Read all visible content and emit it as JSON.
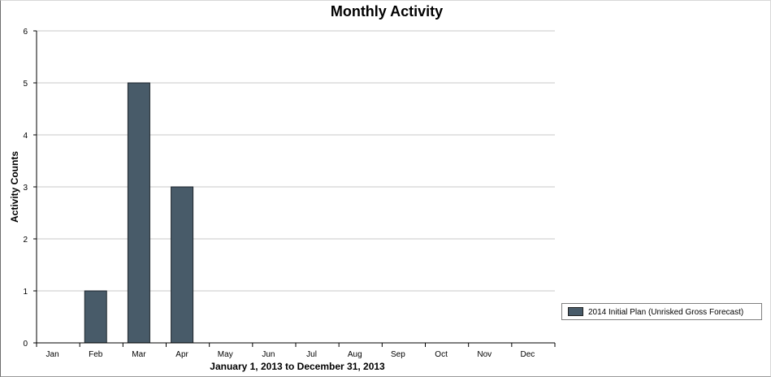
{
  "chart_data": {
    "type": "bar",
    "title": "Monthly Activity",
    "xlabel": "January 1, 2013 to December 31, 2013",
    "ylabel": "Activity Counts",
    "categories": [
      "Jan",
      "Feb",
      "Mar",
      "Apr",
      "May",
      "Jun",
      "Jul",
      "Aug",
      "Sep",
      "Oct",
      "Nov",
      "Dec"
    ],
    "series": [
      {
        "name": "2014 Initial Plan (Unrisked Gross Forecast)",
        "values": [
          0,
          1,
          5,
          3,
          0,
          0,
          0,
          0,
          0,
          0,
          0,
          0
        ],
        "color": "#485b69"
      }
    ],
    "yticks": [
      "0",
      "1",
      "2",
      "3",
      "4",
      "5",
      "6"
    ],
    "ylim": [
      0,
      6
    ],
    "grid": "horizontal",
    "legend_position": "right"
  }
}
